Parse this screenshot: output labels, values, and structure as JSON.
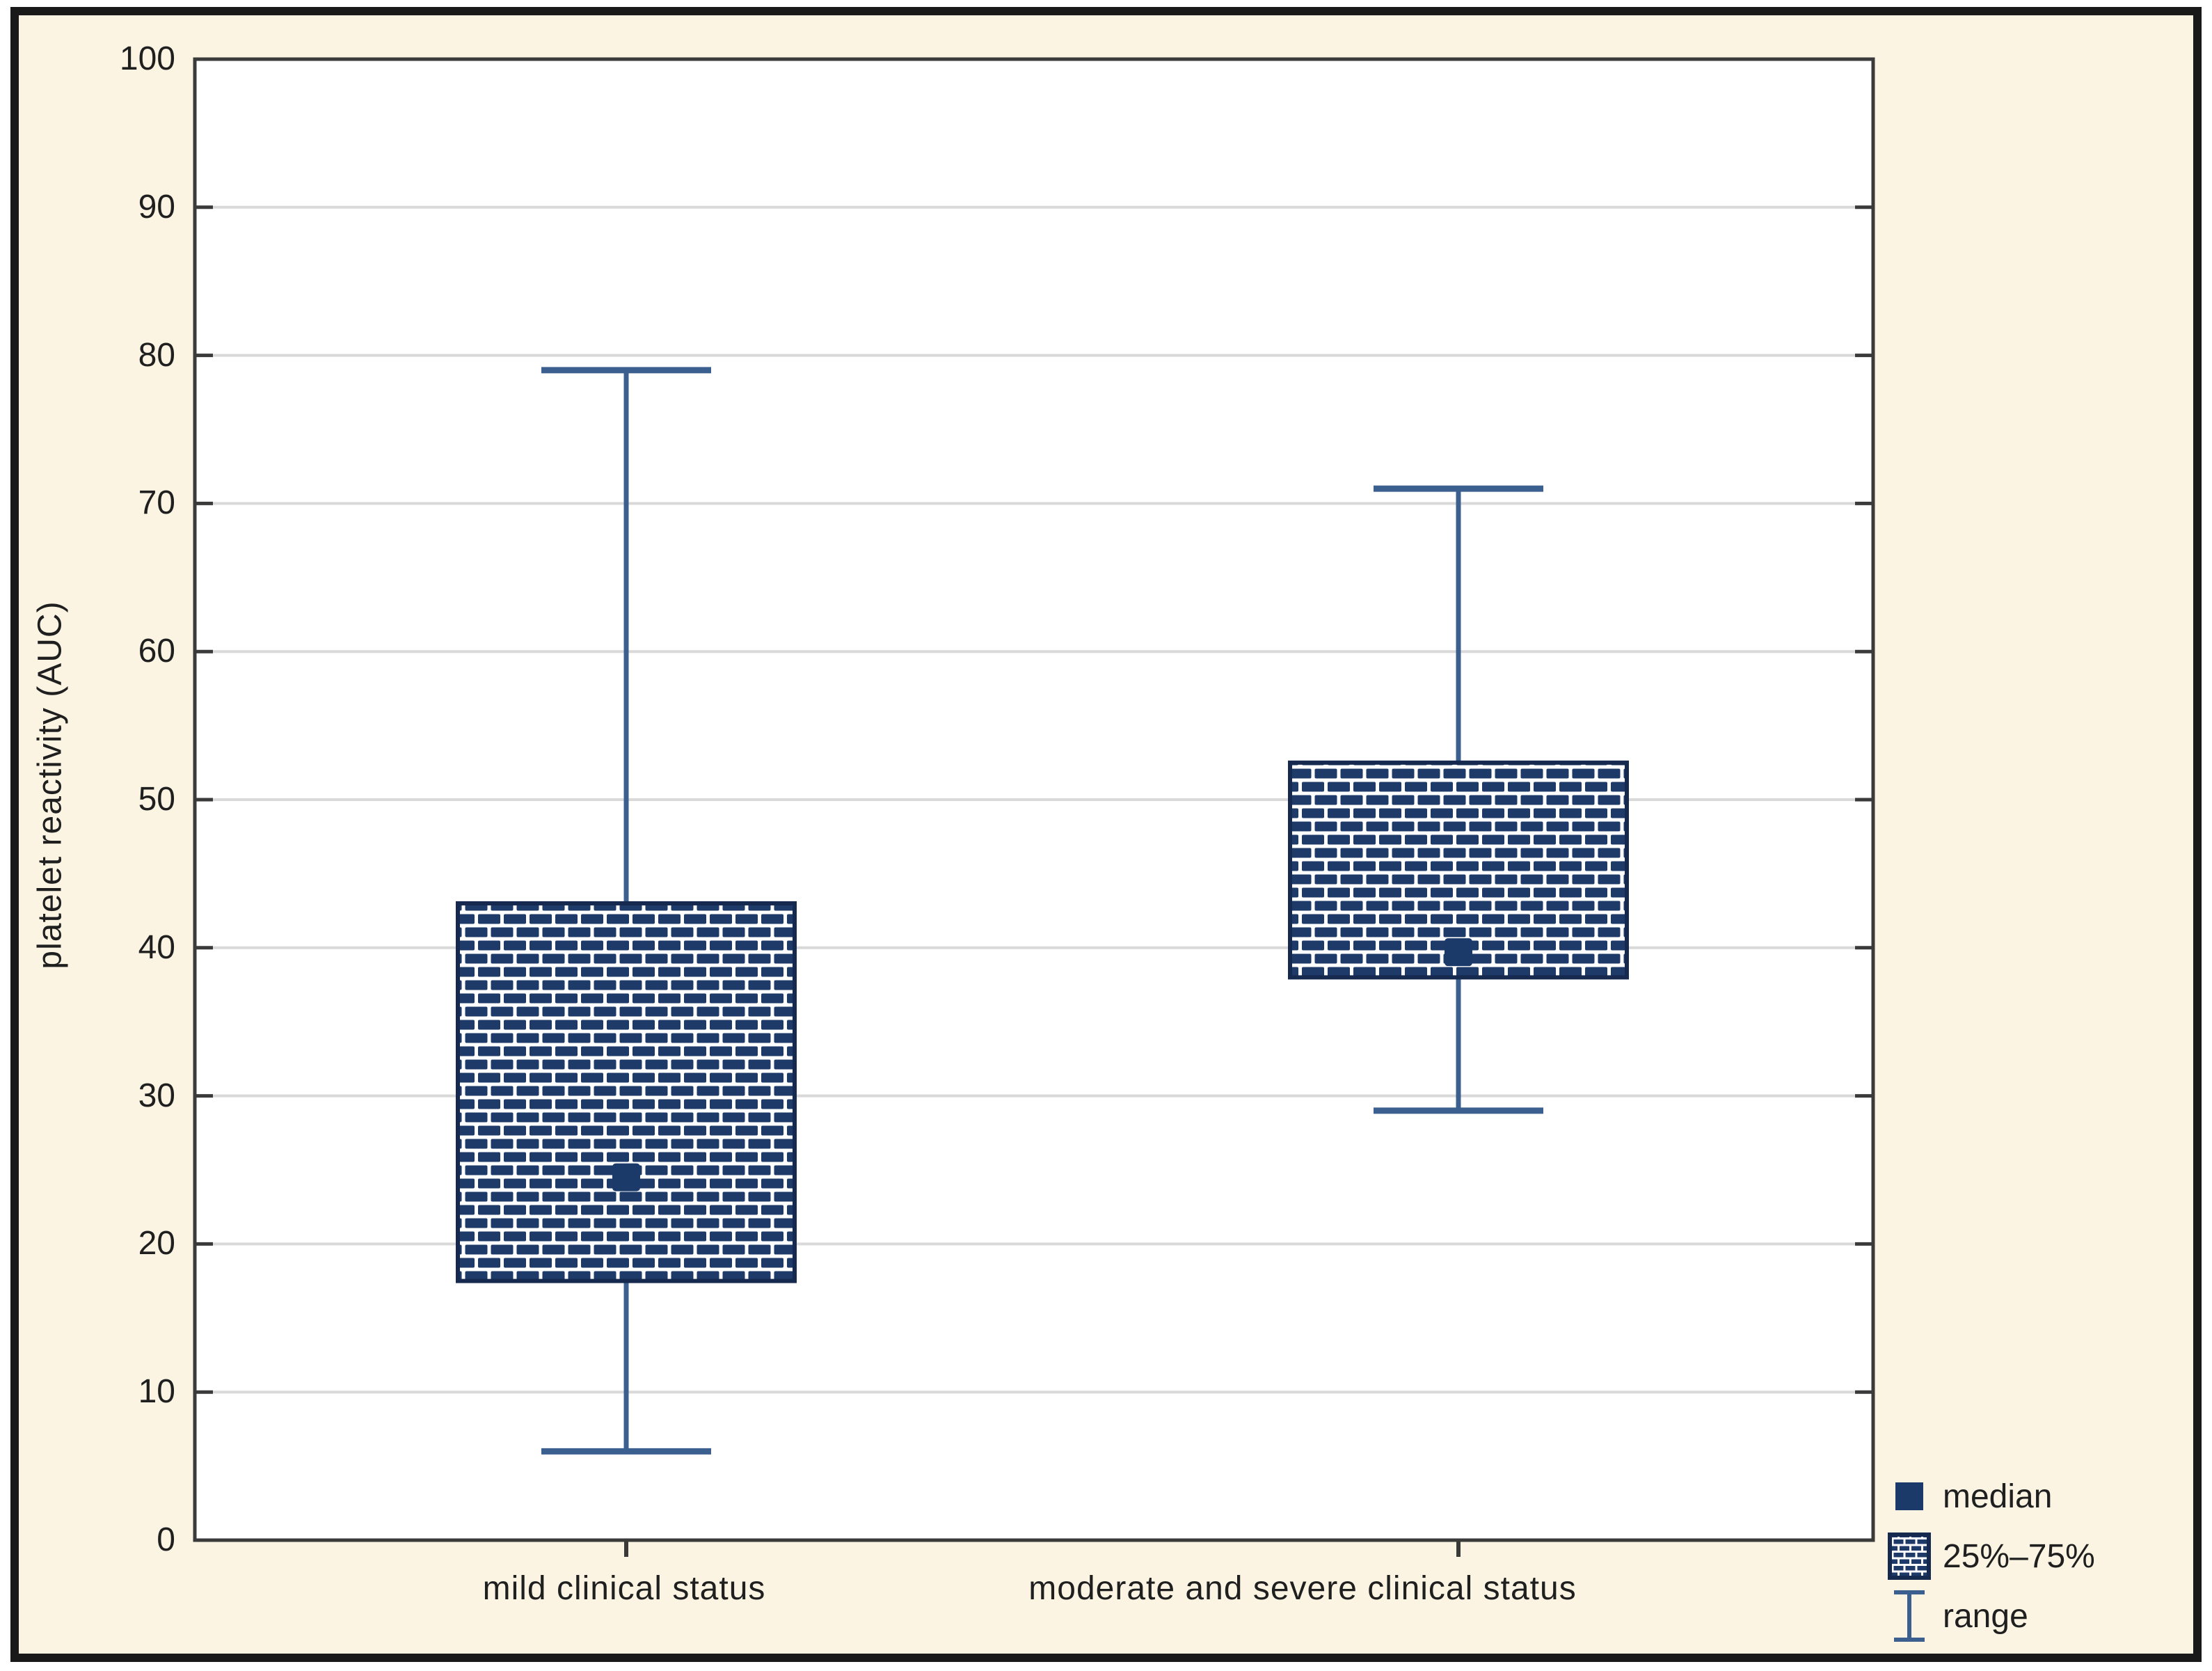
{
  "figure": {
    "background_color": "#fbf4e3",
    "border_color": "#191919",
    "plot_background": "#ffffff"
  },
  "chart_data": {
    "type": "box",
    "title": "",
    "xlabel": "",
    "ylabel": "platelet reactivity (AUC)",
    "y_axis": {
      "min": 0,
      "max": 100,
      "tick_step": 10
    },
    "categories": [
      "mild clinical status",
      "moderate and severe clinical status"
    ],
    "series": [
      {
        "category": "mild clinical status",
        "min": 6,
        "q1": 17.5,
        "median": 24.5,
        "q3": 43,
        "max": 79
      },
      {
        "category": "moderate and severe clinical status",
        "min": 29,
        "q1": 38,
        "median": 39.7,
        "q3": 52.5,
        "max": 71
      }
    ],
    "legend": [
      {
        "marker": "filled-square",
        "label": "median"
      },
      {
        "marker": "hatched-box",
        "label": "25%–75%"
      },
      {
        "marker": "error-bar",
        "label": "range"
      }
    ],
    "grid": "horizontal",
    "legend_position": "bottom-right",
    "colors": {
      "box_brick": "#1e3a69",
      "box_border": "#16294f",
      "whisker": "#3b608f",
      "median": "#1c3a69",
      "frame": "#3a3a3a",
      "gridline": "#d9d9d9",
      "text": "#1f1f1f",
      "background": "#fbf4e3"
    }
  }
}
